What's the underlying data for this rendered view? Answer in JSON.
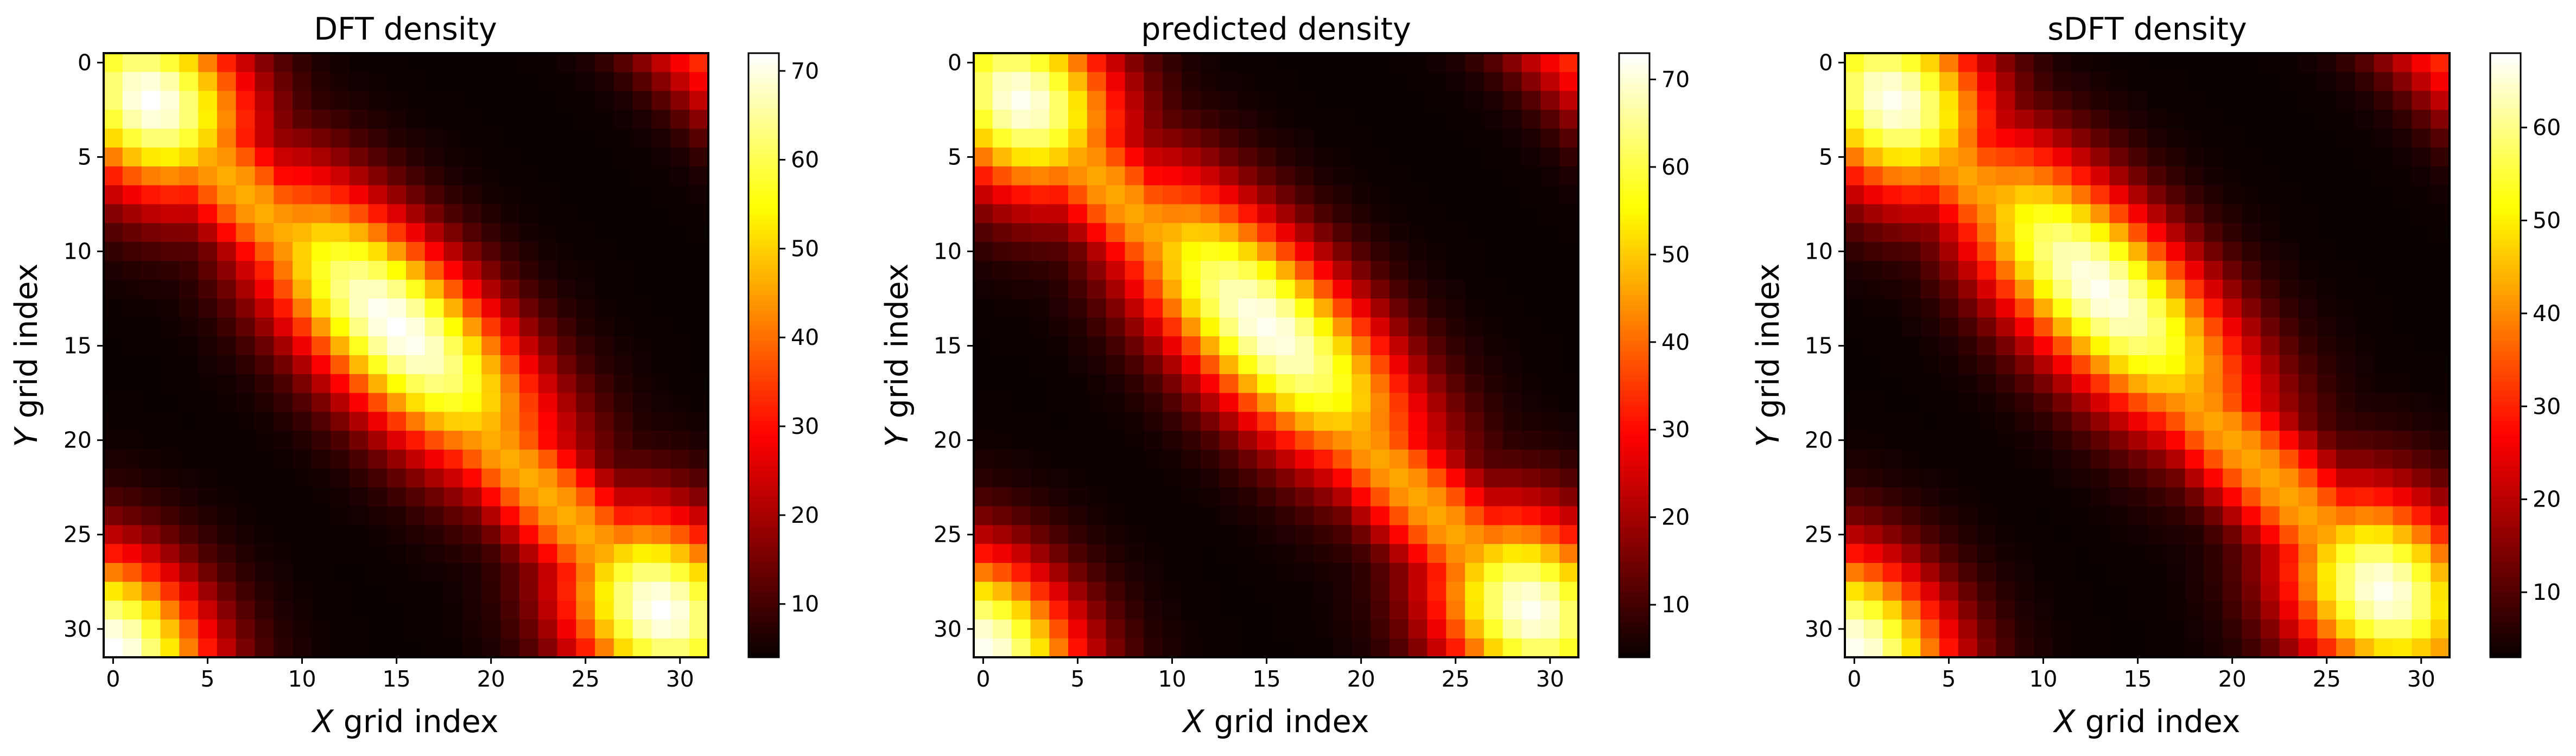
{
  "figure": {
    "panels": [
      {
        "title": "DFT density",
        "xlabel_italic": "X",
        "xlabel_rest": " grid index",
        "ylabel_italic": "Y",
        "ylabel_rest": " grid index",
        "colorbar_ticks": [
          "10",
          "20",
          "30",
          "40",
          "50",
          "60",
          "70"
        ]
      },
      {
        "title": "predicted density",
        "xlabel_italic": "X",
        "xlabel_rest": " grid index",
        "ylabel_italic": "Y",
        "ylabel_rest": " grid index",
        "colorbar_ticks": [
          "10",
          "20",
          "30",
          "40",
          "50",
          "60",
          "70"
        ]
      },
      {
        "title": "sDFT density",
        "xlabel_italic": "X",
        "xlabel_rest": " grid index",
        "ylabel_italic": "Y",
        "ylabel_rest": " grid index",
        "colorbar_ticks": [
          "10",
          "20",
          "30",
          "40",
          "50",
          "60"
        ]
      }
    ],
    "axis_ticks": [
      "0",
      "5",
      "10",
      "15",
      "20",
      "25",
      "30"
    ]
  },
  "chart_data": [
    {
      "type": "heatmap",
      "title": "DFT density",
      "xlabel": "X grid index",
      "ylabel": "Y grid index",
      "grid_size": [
        32,
        32
      ],
      "x_ticks": [
        0,
        5,
        10,
        15,
        20,
        25,
        30
      ],
      "y_ticks": [
        0,
        5,
        10,
        15,
        20,
        25,
        30
      ],
      "colormap": "hot",
      "colorbar": {
        "min": 4,
        "max": 72,
        "ticks": [
          10,
          20,
          30,
          40,
          50,
          60,
          70
        ]
      },
      "ridge_peak": 72,
      "hotspot_centers": [
        [
          2,
          2
        ],
        [
          15,
          14
        ],
        [
          29,
          29
        ],
        [
          0,
          31
        ]
      ],
      "background_min": 4
    },
    {
      "type": "heatmap",
      "title": "predicted density",
      "xlabel": "X grid index",
      "ylabel": "Y grid index",
      "grid_size": [
        32,
        32
      ],
      "x_ticks": [
        0,
        5,
        10,
        15,
        20,
        25,
        30
      ],
      "y_ticks": [
        0,
        5,
        10,
        15,
        20,
        25,
        30
      ],
      "colormap": "hot",
      "colorbar": {
        "min": 4,
        "max": 73,
        "ticks": [
          10,
          20,
          30,
          40,
          50,
          60,
          70
        ]
      },
      "ridge_peak": 72,
      "hotspot_centers": [
        [
          2,
          2
        ],
        [
          15,
          14
        ],
        [
          29,
          29
        ],
        [
          0,
          31
        ]
      ],
      "background_min": 4
    },
    {
      "type": "heatmap",
      "title": "sDFT density",
      "xlabel": "X grid index",
      "ylabel": "Y grid index",
      "grid_size": [
        32,
        32
      ],
      "x_ticks": [
        0,
        5,
        10,
        15,
        20,
        25,
        30
      ],
      "y_ticks": [
        0,
        5,
        10,
        15,
        20,
        25,
        30
      ],
      "colormap": "hot",
      "colorbar": {
        "min": 3,
        "max": 68,
        "ticks": [
          10,
          20,
          30,
          40,
          50,
          60
        ]
      },
      "ridge_peak": 67,
      "hotspot_centers": [
        [
          2,
          2
        ],
        [
          13,
          12
        ],
        [
          28,
          28
        ],
        [
          0,
          31
        ]
      ],
      "background_min": 3
    }
  ]
}
